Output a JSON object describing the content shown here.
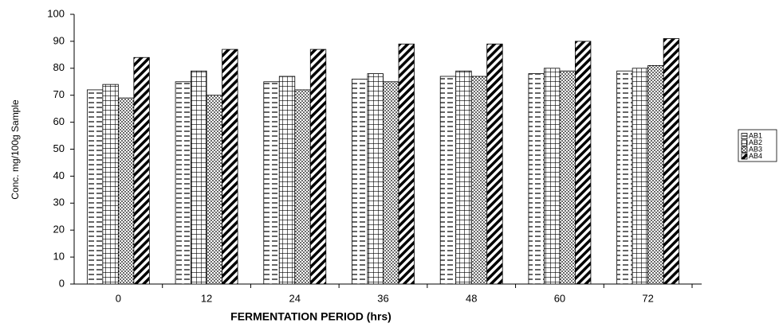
{
  "chart_data": {
    "type": "bar",
    "y_label": "Conc. mg/100g Sample",
    "x_label": "FERMENTATION  PERIOD (hrs)",
    "categories": [
      "0",
      "12",
      "24",
      "36",
      "48",
      "60",
      "72"
    ],
    "series": [
      {
        "name": "AB1",
        "color": "#000000",
        "pattern": "horizontal",
        "values": [
          72,
          75,
          75,
          76,
          77,
          78,
          79
        ]
      },
      {
        "name": "AB2",
        "color": "#000000",
        "pattern": "grid",
        "values": [
          74,
          79,
          77,
          78,
          79,
          80,
          80
        ]
      },
      {
        "name": "AB3",
        "color": "#000000",
        "pattern": "dots",
        "values": [
          69,
          70,
          72,
          75,
          77,
          79,
          81
        ]
      },
      {
        "name": "AB4",
        "color": "#000000",
        "pattern": "diagonal",
        "values": [
          84,
          87,
          87,
          89,
          89,
          90,
          91
        ]
      }
    ],
    "ylim": [
      0,
      100
    ],
    "yticks": [
      0,
      10,
      20,
      30,
      40,
      50,
      60,
      70,
      80,
      90,
      100
    ],
    "grid": false,
    "legend": "right"
  }
}
